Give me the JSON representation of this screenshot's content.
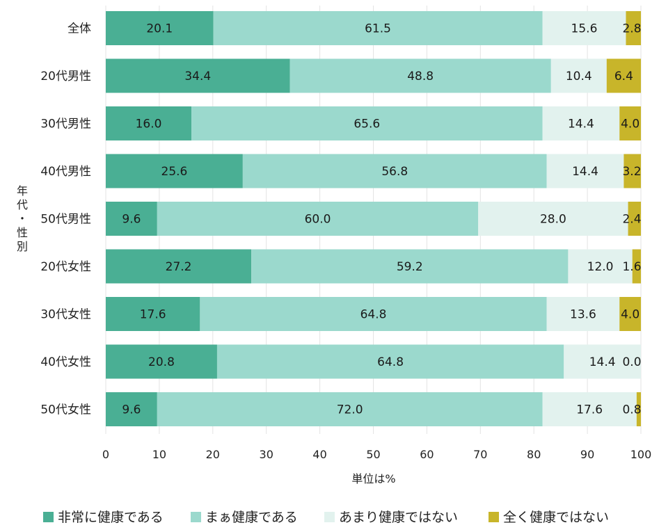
{
  "chart_data": {
    "type": "bar",
    "orientation": "horizontal",
    "stacked": true,
    "categories": [
      "全体",
      "20代男性",
      "30代男性",
      "40代男性",
      "50代男性",
      "20代女性",
      "30代女性",
      "40代女性",
      "50代女性"
    ],
    "series": [
      {
        "name": "非常に健康である",
        "color": "#4aaf94",
        "values": [
          20.1,
          34.4,
          16.0,
          25.6,
          9.6,
          27.2,
          17.6,
          20.8,
          9.6
        ]
      },
      {
        "name": "まぁ健康である",
        "color": "#9bd9cd",
        "values": [
          61.5,
          48.8,
          65.6,
          56.8,
          60.0,
          59.2,
          64.8,
          64.8,
          72.0
        ]
      },
      {
        "name": "あまり健康ではない",
        "color": "#e2f2ee",
        "values": [
          15.6,
          10.4,
          14.4,
          14.4,
          28.0,
          12.0,
          13.6,
          14.4,
          17.6
        ]
      },
      {
        "name": "全く健康ではない",
        "color": "#c8b52a",
        "values": [
          2.8,
          6.4,
          4.0,
          3.2,
          2.4,
          1.6,
          4.0,
          0.0,
          0.8
        ]
      }
    ],
    "value_labels": [
      [
        "20.1",
        "34.4",
        "16.0",
        "25.6",
        "9.6",
        "27.2",
        "17.6",
        "20.8",
        "9.6"
      ],
      [
        "61.5",
        "48.8",
        "65.6",
        "56.8",
        "60.0",
        "59.2",
        "64.8",
        "64.8",
        "72.0"
      ],
      [
        "15.6",
        "10.4",
        "14.4",
        "14.4",
        "28.0",
        "12.0",
        "13.6",
        "14.4",
        "17.6"
      ],
      [
        "2.8",
        "6.4",
        "4.0",
        "3.2",
        "2.4",
        "1.6",
        "4.0",
        "0.0",
        "0.8"
      ]
    ],
    "xlabel": "単位は%",
    "ylabel": "年代・性別",
    "xlim": [
      0,
      100
    ],
    "xticks": [
      0,
      10,
      20,
      30,
      40,
      50,
      60,
      70,
      80,
      90,
      100
    ],
    "grid": true,
    "legend_position": "bottom"
  }
}
